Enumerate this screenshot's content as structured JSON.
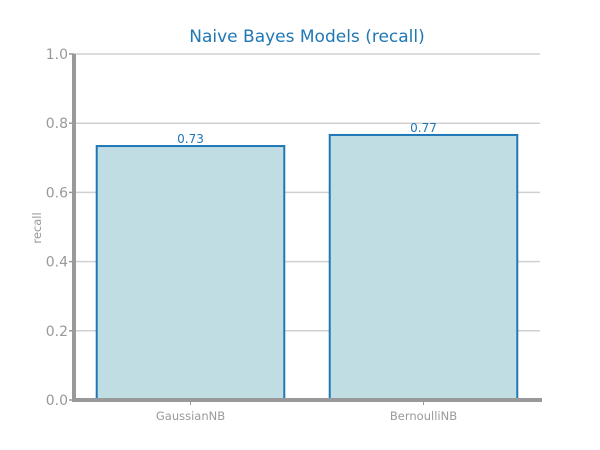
{
  "chart_data": {
    "type": "bar",
    "title": "Naive Bayes Models (recall)",
    "xlabel": "",
    "ylabel": "recall",
    "categories": [
      "GaussianNB",
      "BernoulliNB"
    ],
    "values": [
      0.734,
      0.766
    ],
    "value_labels": [
      "0.73",
      "0.77"
    ],
    "ylim": [
      0,
      1.0
    ],
    "yticks": [
      0.0,
      0.2,
      0.4,
      0.6,
      0.8,
      1.0
    ],
    "ytick_labels": [
      "0.0",
      "0.2",
      "0.4",
      "0.6",
      "0.8",
      "1.0"
    ],
    "grid": "horizontal",
    "legend": "none",
    "colors": {
      "title": "#1f77b4",
      "bar_fill": "#bfdde3",
      "bar_edge": "#1f77b4",
      "value_label": "#1f77b4",
      "axis": "#999999",
      "grid": "#d0d0d0",
      "tick_text": "#999999"
    }
  }
}
